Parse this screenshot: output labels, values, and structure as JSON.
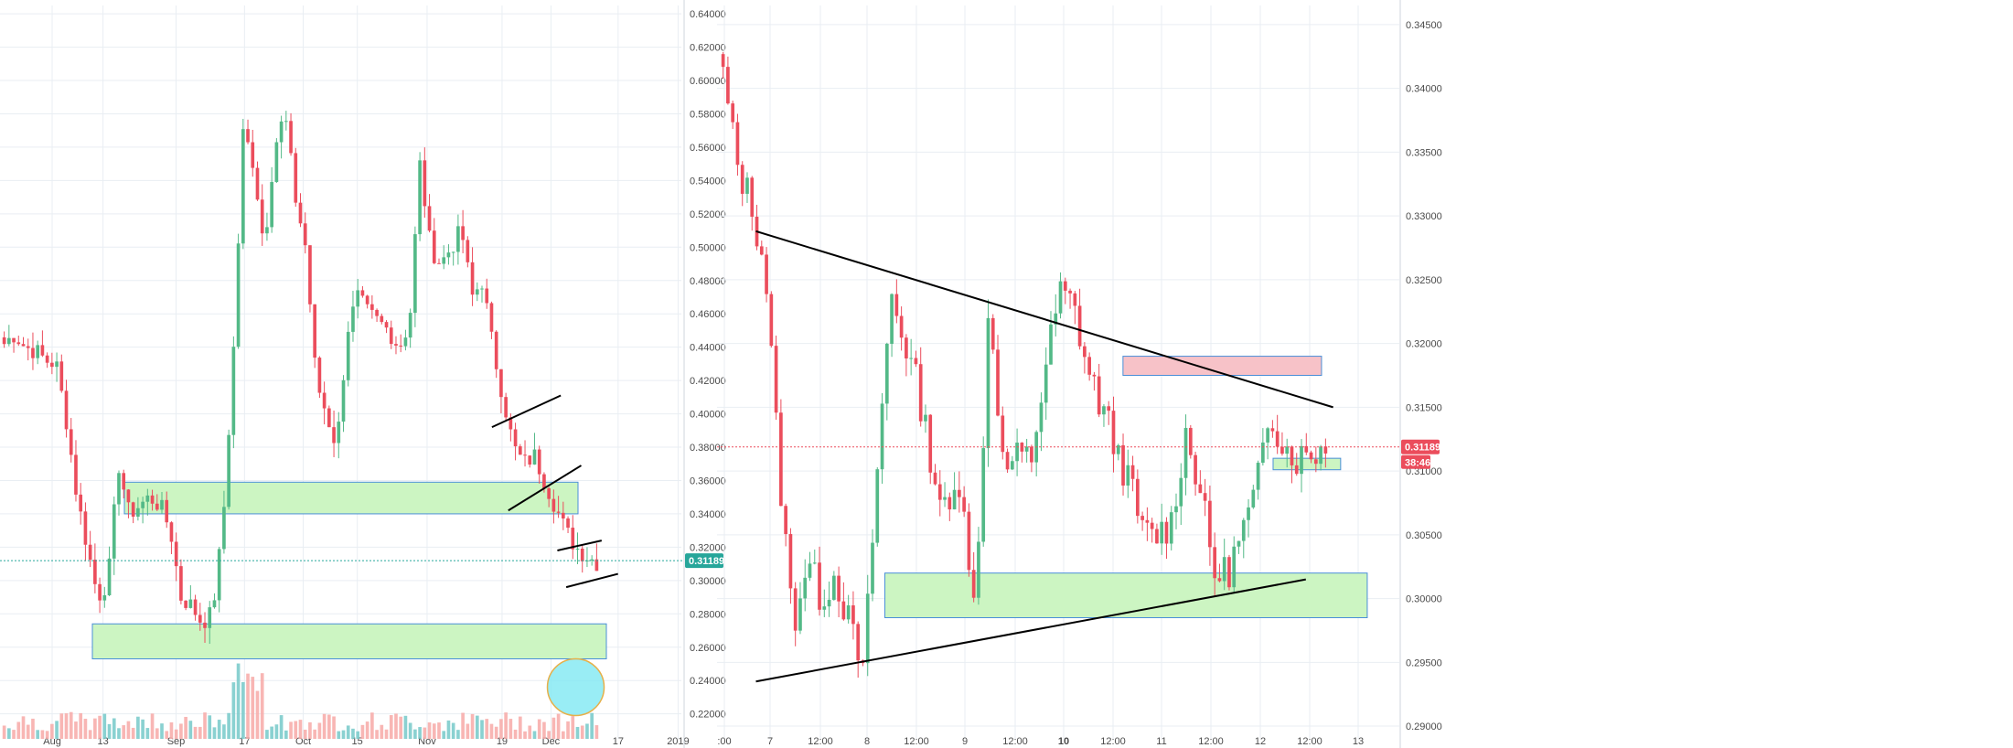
{
  "chart_data": [
    {
      "type": "candlestick",
      "title": "",
      "colors": {
        "up": "#53b987",
        "down": "#eb4d5c",
        "volume_up": "#76c9c9",
        "volume_down": "#f7a9a7",
        "zone_green": "#ccf5c2",
        "zone_border": "#4a8fd8",
        "grid": "#e9eef3",
        "price_line": "#26a69a"
      },
      "grid": true,
      "ylim": [
        0.205,
        0.645
      ],
      "yticks": [
        "0.64000",
        "0.62000",
        "0.60000",
        "0.58000",
        "0.56000",
        "0.54000",
        "0.52000",
        "0.50000",
        "0.48000",
        "0.46000",
        "0.44000",
        "0.42000",
        "0.40000",
        "0.38000",
        "0.36000",
        "0.34000",
        "0.32000",
        "0.30000",
        "0.28000",
        "0.26000",
        "0.24000",
        "0.22000"
      ],
      "xticks": [
        "Aug",
        "13",
        "Sep",
        "17",
        "Oct",
        "15",
        "Nov",
        "19",
        "Dec",
        "17",
        "2019"
      ],
      "last_price_label": "0.31189",
      "last_price": 0.31189,
      "anchors": [
        {
          "close": 0.442
        },
        {
          "close": 0.448
        },
        {
          "close": 0.44
        },
        {
          "close": 0.438
        },
        {
          "close": 0.432
        },
        {
          "close": 0.43
        },
        {
          "close": 0.395
        },
        {
          "close": 0.35
        },
        {
          "close": 0.32
        },
        {
          "close": 0.29
        },
        {
          "close": 0.3
        },
        {
          "close": 0.37
        },
        {
          "close": 0.34
        },
        {
          "close": 0.345
        },
        {
          "close": 0.35
        },
        {
          "close": 0.345
        },
        {
          "close": 0.33
        },
        {
          "close": 0.29
        },
        {
          "close": 0.285
        },
        {
          "close": 0.275
        },
        {
          "close": 0.28
        },
        {
          "close": 0.33
        },
        {
          "close": 0.43
        },
        {
          "close": 0.57
        },
        {
          "close": 0.55
        },
        {
          "close": 0.5
        },
        {
          "close": 0.56
        },
        {
          "close": 0.58
        },
        {
          "close": 0.53
        },
        {
          "close": 0.5
        },
        {
          "close": 0.42
        },
        {
          "close": 0.4
        },
        {
          "close": 0.38
        },
        {
          "close": 0.45
        },
        {
          "close": 0.47
        },
        {
          "close": 0.46
        },
        {
          "close": 0.455
        },
        {
          "close": 0.45
        },
        {
          "close": 0.44
        },
        {
          "close": 0.455
        },
        {
          "close": 0.55
        },
        {
          "close": 0.5
        },
        {
          "close": 0.49
        },
        {
          "close": 0.5
        },
        {
          "close": 0.51
        },
        {
          "close": 0.47
        },
        {
          "close": 0.48
        },
        {
          "close": 0.44
        },
        {
          "close": 0.41
        },
        {
          "close": 0.38
        },
        {
          "close": 0.37
        },
        {
          "close": 0.375
        },
        {
          "close": 0.36
        },
        {
          "close": 0.345
        },
        {
          "close": 0.33
        },
        {
          "close": 0.32
        },
        {
          "close": 0.315
        },
        {
          "close": 0.311
        }
      ],
      "zones": [
        {
          "from": 0.34,
          "to": 0.359
        },
        {
          "from": 0.253,
          "to": 0.274
        }
      ],
      "trend_lines": [
        {
          "x0": 0.722,
          "y0": 0.392,
          "x1": 0.823,
          "y1": 0.411
        },
        {
          "x0": 0.746,
          "y0": 0.342,
          "x1": 0.853,
          "y1": 0.369
        },
        {
          "x0": 0.818,
          "y0": 0.318,
          "x1": 0.883,
          "y1": 0.324
        },
        {
          "x0": 0.831,
          "y0": 0.296,
          "x1": 0.907,
          "y1": 0.304
        }
      ],
      "highlight_circle": {
        "x": 0.845,
        "y": 0.236
      }
    },
    {
      "type": "candlestick",
      "title": "",
      "grid": true,
      "ylim": [
        0.289,
        0.3465
      ],
      "yticks": [
        "0.34500",
        "0.34000",
        "0.33500",
        "0.33000",
        "0.32500",
        "0.32000",
        "0.31500",
        "0.31000",
        "0.30500",
        "0.30000",
        "0.29500",
        "0.29000"
      ],
      "xticks": [
        ":00",
        "7",
        "12:00",
        "8",
        "12:00",
        "9",
        "12:00",
        "10",
        "12:00",
        "11",
        "12:00",
        "12",
        "12:00",
        "13"
      ],
      "last_price_label": "0.31189",
      "last_price": 0.31189,
      "countdown_label": "38:46",
      "colors": {
        "up": "#53b987",
        "down": "#eb4d5c",
        "zone_green": "#ccf5c2",
        "zone_red": "#f7c2c8",
        "zone_border": "#4a8fd8",
        "grid": "#e9eef3",
        "price_line": "#eb4d5c"
      },
      "anchors": [
        {
          "close": 0.341
        },
        {
          "close": 0.334
        },
        {
          "close": 0.331
        },
        {
          "close": 0.326
        },
        {
          "close": 0.31
        },
        {
          "close": 0.298
        },
        {
          "close": 0.303
        },
        {
          "close": 0.3
        },
        {
          "close": 0.302
        },
        {
          "close": 0.298
        },
        {
          "close": 0.294
        },
        {
          "close": 0.31
        },
        {
          "close": 0.324
        },
        {
          "close": 0.32
        },
        {
          "close": 0.316
        },
        {
          "close": 0.31
        },
        {
          "close": 0.306
        },
        {
          "close": 0.31
        },
        {
          "close": 0.298
        },
        {
          "close": 0.324
        },
        {
          "close": 0.31
        },
        {
          "close": 0.311
        },
        {
          "close": 0.311
        },
        {
          "close": 0.318
        },
        {
          "close": 0.324
        },
        {
          "close": 0.323
        },
        {
          "close": 0.318
        },
        {
          "close": 0.315
        },
        {
          "close": 0.312
        },
        {
          "close": 0.309
        },
        {
          "close": 0.305
        },
        {
          "close": 0.305
        },
        {
          "close": 0.306
        },
        {
          "close": 0.313
        },
        {
          "close": 0.309
        },
        {
          "close": 0.302
        },
        {
          "close": 0.302
        },
        {
          "close": 0.305
        },
        {
          "close": 0.308
        },
        {
          "close": 0.315
        },
        {
          "close": 0.312
        },
        {
          "close": 0.311
        },
        {
          "close": 0.3115
        },
        {
          "close": 0.31189
        }
      ],
      "zones": [
        {
          "kind": "red",
          "x0": 0.595,
          "x1": 0.886,
          "from": 0.3175,
          "to": 0.319
        },
        {
          "kind": "green",
          "x0": 0.246,
          "x1": 0.953,
          "from": 0.2985,
          "to": 0.302
        },
        {
          "kind": "green",
          "x0": 0.815,
          "x1": 0.914,
          "from": 0.3101,
          "to": 0.311
        }
      ],
      "trend_lines": [
        {
          "x0": 0.057,
          "y0": 0.3288,
          "x1": 0.903,
          "y1": 0.315
        },
        {
          "x0": 0.057,
          "y0": 0.2935,
          "x1": 0.863,
          "y1": 0.3015
        }
      ]
    }
  ]
}
